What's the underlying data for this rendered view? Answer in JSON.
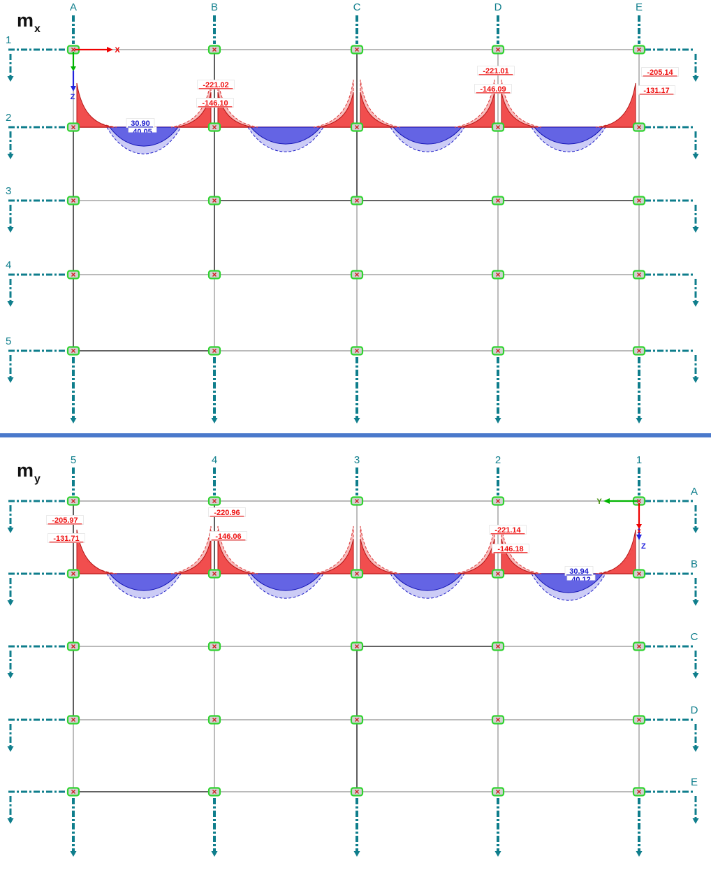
{
  "colors": {
    "grid_axis_teal": "#0F7E8C",
    "grid_gray": "#909090",
    "member_black": "#141414",
    "negative_fill_dark": "#F04848",
    "negative_fill_light": "#F6A4A4",
    "negative_text_red": "#EE1111",
    "positive_fill_dark": "#5B5BE2",
    "positive_fill_light": "#A3A3EE",
    "positive_text_blue": "#1717CC",
    "node_green": "#2FD32F",
    "node_fill_gray": "#D2D2D2",
    "separator_blue": "#4A79CB",
    "axis_x_red": "#EE0000",
    "axis_y_green": "#00B400",
    "axis_z_blue": "#2222DD"
  },
  "panels": [
    {
      "id": "mx",
      "title": "m",
      "title_sub": "x",
      "column_labels": [
        "A",
        "B",
        "C",
        "D",
        "E"
      ],
      "row_labels": [
        "1",
        "2",
        "3",
        "4",
        "5"
      ],
      "row_labels_side": "left",
      "diagram_baseline_row": "2",
      "axis_triad": {
        "x_label": "X",
        "z_label": "Z"
      },
      "supports": [
        {
          "column": "A",
          "labels": []
        },
        {
          "column": "B",
          "labels": [
            "-221.02",
            "-146.10"
          ]
        },
        {
          "column": "C",
          "labels": []
        },
        {
          "column": "D",
          "labels": [
            "-221.01",
            "-146.09"
          ]
        },
        {
          "column": "E",
          "labels": [
            "-205.14",
            "-131.17"
          ]
        }
      ],
      "span_values": [
        {
          "span": "A-B",
          "labels": [
            "30.90",
            "40.05"
          ]
        }
      ]
    },
    {
      "id": "my",
      "title": "m",
      "title_sub": "y",
      "column_labels": [
        "5",
        "4",
        "3",
        "2",
        "1"
      ],
      "row_labels": [
        "A",
        "B",
        "C",
        "D",
        "E"
      ],
      "row_labels_side": "right",
      "diagram_baseline_row": "B",
      "axis_triad": {
        "y_label": "Y",
        "x_glyph": "x",
        "z_label": "Z"
      },
      "supports": [
        {
          "column": "5",
          "labels": [
            "-205.97",
            "-131.71"
          ]
        },
        {
          "column": "4",
          "labels": [
            "-220.96",
            "-146.06"
          ]
        },
        {
          "column": "3",
          "labels": []
        },
        {
          "column": "2",
          "labels": [
            "-221.14",
            "-146.18"
          ]
        },
        {
          "column": "1",
          "labels": []
        }
      ],
      "span_values": [
        {
          "span": "2-1",
          "labels": [
            "30.94",
            "40.12"
          ]
        }
      ]
    }
  ],
  "chart_data": [
    {
      "type": "area",
      "title": "mx bending moment diagram along grid row 2",
      "x_categories": [
        "A",
        "B",
        "C",
        "D",
        "E"
      ],
      "negative_peaks_at_supports": [
        {
          "at": "B",
          "values": [
            -221.02,
            -146.1
          ]
        },
        {
          "at": "D",
          "values": [
            -221.01,
            -146.09
          ]
        },
        {
          "at": "E",
          "values": [
            -205.14,
            -131.17
          ]
        }
      ],
      "positive_span_peaks": [
        {
          "span": "A-B",
          "values": [
            30.9,
            40.05
          ]
        }
      ],
      "legend_position": "none",
      "grid": false
    },
    {
      "type": "area",
      "title": "my bending moment diagram along grid row B",
      "x_categories": [
        "5",
        "4",
        "3",
        "2",
        "1"
      ],
      "negative_peaks_at_supports": [
        {
          "at": "5",
          "values": [
            -205.97,
            -131.71
          ]
        },
        {
          "at": "4",
          "values": [
            -220.96,
            -146.06
          ]
        },
        {
          "at": "2",
          "values": [
            -221.14,
            -146.18
          ]
        }
      ],
      "positive_span_peaks": [
        {
          "span": "2-1",
          "values": [
            30.94,
            40.12
          ]
        }
      ],
      "legend_position": "none",
      "grid": false
    }
  ]
}
